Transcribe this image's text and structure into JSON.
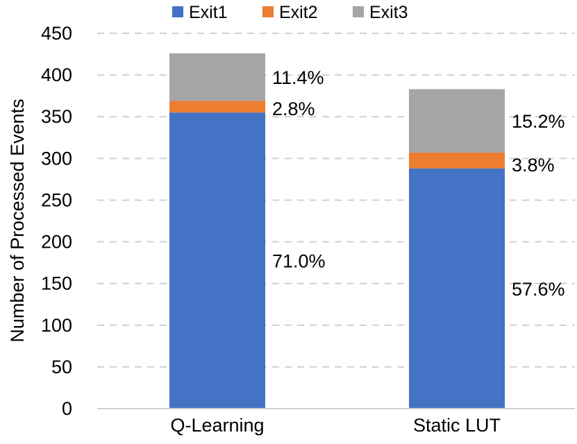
{
  "chart_data": {
    "type": "bar",
    "stacked": true,
    "categories": [
      "Q-Learning",
      "Static LUT"
    ],
    "series": [
      {
        "name": "Exit1",
        "color": "#4472c4",
        "values": [
          355,
          288
        ],
        "labels": [
          "71.0%",
          "57.6%"
        ]
      },
      {
        "name": "Exit2",
        "color": "#ed7d31",
        "values": [
          14,
          19
        ],
        "labels": [
          "2.8%",
          "3.8%"
        ]
      },
      {
        "name": "Exit3",
        "color": "#a5a5a5",
        "values": [
          57,
          76
        ],
        "labels": [
          "11.4%",
          "15.2%"
        ]
      }
    ],
    "ylabel": "Number of Processed Events",
    "xlabel": "",
    "ylim": [
      0,
      450
    ],
    "yticks": [
      "0",
      "50",
      "100",
      "150",
      "200",
      "250",
      "300",
      "350",
      "400",
      "450"
    ],
    "grid": true,
    "legend_position": "top"
  }
}
